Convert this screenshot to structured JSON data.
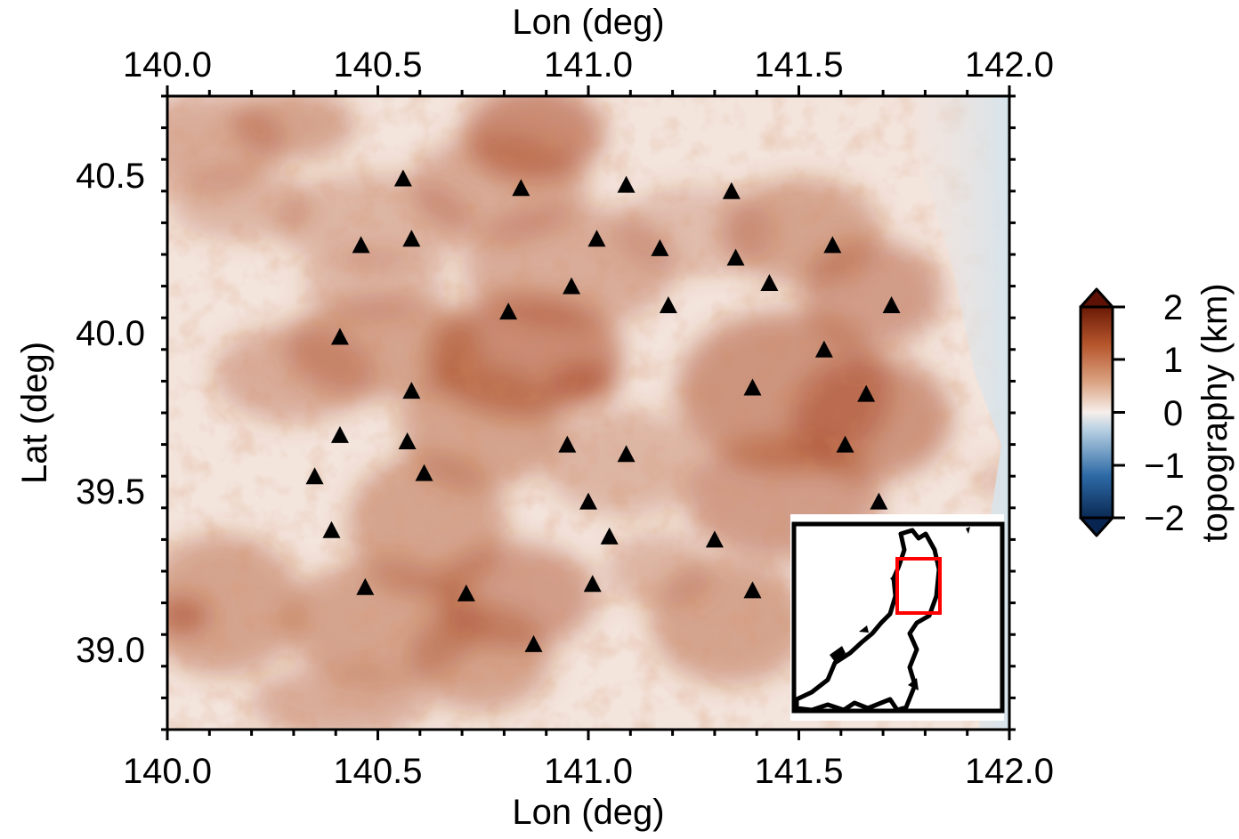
{
  "map": {
    "top_axis_title": "Lon (deg)",
    "bottom_axis_title": "Lon (deg)",
    "left_axis_title": "Lat (deg)",
    "lon_range": [
      140.0,
      142.0
    ],
    "lat_range": [
      38.75,
      40.75
    ],
    "lon_ticks": [
      "140.0",
      "140.5",
      "141.0",
      "141.5",
      "142.0"
    ],
    "lat_ticks": [
      "39.0",
      "39.5",
      "40.0",
      "40.5"
    ],
    "lon_tick_values": [
      140.0,
      140.5,
      141.0,
      141.5,
      142.0
    ],
    "lat_tick_values": [
      39.0,
      39.5,
      40.0,
      40.5
    ],
    "frame_color": "#000000",
    "ocean_color": "#dfe8ee",
    "land_low_color": "#f4e3da",
    "land_high_color": "#a8451f"
  },
  "stations": {
    "marker": "triangle",
    "color": "#000000",
    "points": [
      {
        "lon": 140.56,
        "lat": 40.49
      },
      {
        "lon": 140.84,
        "lat": 40.46
      },
      {
        "lon": 141.09,
        "lat": 40.47
      },
      {
        "lon": 141.34,
        "lat": 40.45
      },
      {
        "lon": 140.46,
        "lat": 40.28
      },
      {
        "lon": 140.58,
        "lat": 40.3
      },
      {
        "lon": 141.02,
        "lat": 40.3
      },
      {
        "lon": 141.17,
        "lat": 40.27
      },
      {
        "lon": 141.35,
        "lat": 40.24
      },
      {
        "lon": 141.58,
        "lat": 40.28
      },
      {
        "lon": 140.96,
        "lat": 40.15
      },
      {
        "lon": 141.43,
        "lat": 40.16
      },
      {
        "lon": 140.81,
        "lat": 40.07
      },
      {
        "lon": 141.19,
        "lat": 40.09
      },
      {
        "lon": 141.72,
        "lat": 40.09
      },
      {
        "lon": 140.41,
        "lat": 39.99
      },
      {
        "lon": 141.56,
        "lat": 39.95
      },
      {
        "lon": 140.58,
        "lat": 39.82
      },
      {
        "lon": 141.39,
        "lat": 39.83
      },
      {
        "lon": 141.66,
        "lat": 39.81
      },
      {
        "lon": 140.41,
        "lat": 39.68
      },
      {
        "lon": 140.57,
        "lat": 39.66
      },
      {
        "lon": 140.95,
        "lat": 39.65
      },
      {
        "lon": 141.09,
        "lat": 39.62
      },
      {
        "lon": 141.61,
        "lat": 39.65
      },
      {
        "lon": 140.35,
        "lat": 39.55
      },
      {
        "lon": 140.61,
        "lat": 39.56
      },
      {
        "lon": 141.0,
        "lat": 39.47
      },
      {
        "lon": 141.69,
        "lat": 39.47
      },
      {
        "lon": 140.39,
        "lat": 39.38
      },
      {
        "lon": 141.05,
        "lat": 39.36
      },
      {
        "lon": 141.3,
        "lat": 39.35
      },
      {
        "lon": 140.47,
        "lat": 39.2
      },
      {
        "lon": 140.71,
        "lat": 39.18
      },
      {
        "lon": 141.01,
        "lat": 39.21
      },
      {
        "lon": 141.39,
        "lat": 39.19
      },
      {
        "lon": 140.87,
        "lat": 39.02
      }
    ]
  },
  "colorbar": {
    "label": "topography (km)",
    "ticks": [
      "2",
      "1",
      "0",
      "−1",
      "−2"
    ],
    "tick_values": [
      2,
      1,
      0,
      -1,
      -2
    ],
    "range": [
      -2,
      2
    ],
    "colors": [
      "#0b2a55",
      "#2d6aa6",
      "#b9d1e3",
      "#f6eeea",
      "#d9a07e",
      "#b6562d",
      "#6b1a06"
    ],
    "extension_colors": {
      "low": "#082450",
      "high": "#5e1205"
    }
  },
  "inset": {
    "box_color": "#ff0000",
    "coast_color": "#000000",
    "background": "#ffffff"
  }
}
